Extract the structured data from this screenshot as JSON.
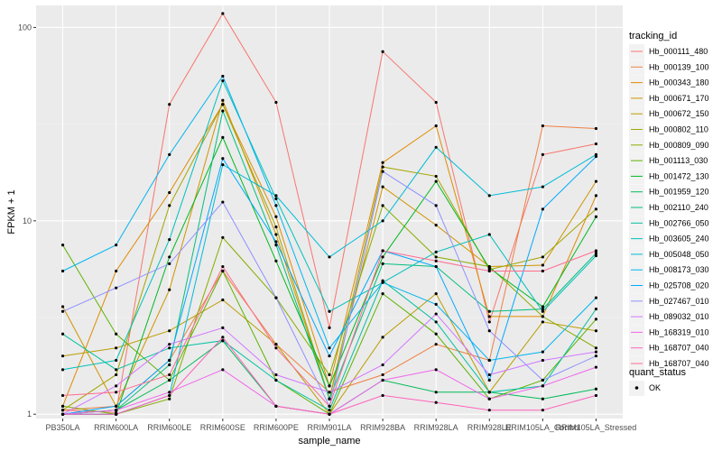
{
  "chart_data": {
    "type": "line",
    "xlabel": "sample_name",
    "ylabel": "FPKM + 1",
    "y_scale": "log10",
    "ylim": [
      0.95,
      130
    ],
    "y_ticks": [
      1,
      10,
      100
    ],
    "y_tick_labels": [
      "1",
      "10",
      "100"
    ],
    "grid": true,
    "legend_placement": "right",
    "panel_background": "#ebebeb",
    "categories": [
      "PB350LA",
      "RRIM600LA",
      "RRIM600LE",
      "RRIM600SE",
      "RRIM600PE",
      "RRIM901LA",
      "RRIM928BA",
      "RRIM928LA",
      "RRIM928LE",
      "RRIM105LA_Control",
      "RRIM105LA_Stressed"
    ],
    "color_legend": {
      "title": "tracking_id"
    },
    "shape_legend": {
      "title": "quant_status",
      "entries": [
        "OK"
      ]
    },
    "series": [
      {
        "name": "Hb_000111_480",
        "color": "#F8766D",
        "values": [
          1.05,
          1.02,
          40,
          118,
          41,
          2.8,
          75,
          41,
          3.0,
          22,
          25
        ]
      },
      {
        "name": "Hb_000139_100",
        "color": "#EE8043",
        "values": [
          1.05,
          1.1,
          1.9,
          5.5,
          2.3,
          1.3,
          1.6,
          2.3,
          1.9,
          31,
          30
        ]
      },
      {
        "name": "Hb_000343_180",
        "color": "#E08B00",
        "values": [
          1.1,
          5.5,
          14,
          40,
          10.5,
          1.4,
          20,
          31,
          3.2,
          3.2,
          13.5
        ]
      },
      {
        "name": "Hb_000671_170",
        "color": "#CF9400",
        "values": [
          3.6,
          1.1,
          4.4,
          42,
          8.5,
          1.2,
          15,
          9.5,
          5.8,
          5.9,
          16
        ]
      },
      {
        "name": "Hb_000672_150",
        "color": "#BB9D00",
        "values": [
          2.0,
          2.2,
          2.7,
          3.9,
          2.3,
          1.0,
          2.5,
          4.2,
          1.3,
          3.0,
          2.7
        ]
      },
      {
        "name": "Hb_000802_110",
        "color": "#A3A500",
        "values": [
          1.05,
          1.6,
          12,
          40,
          9.3,
          1.2,
          19,
          17,
          5.6,
          6.5,
          11.5
        ]
      },
      {
        "name": "Hb_000809_090",
        "color": "#85AD00",
        "values": [
          1.1,
          1.0,
          1.2,
          8.2,
          4.0,
          1.6,
          12,
          6.5,
          5.8,
          3.2,
          2.2
        ]
      },
      {
        "name": "Hb_001113_030",
        "color": "#5BB300",
        "values": [
          7.5,
          2.6,
          1.5,
          5.5,
          1.5,
          1.0,
          4.2,
          2.6,
          1.2,
          1.5,
          3.1
        ]
      },
      {
        "name": "Hb_001472_130",
        "color": "#00B81F",
        "values": [
          1.0,
          1.0,
          6.5,
          27,
          6.2,
          1.4,
          6.5,
          16,
          5.7,
          3.6,
          10.5
        ]
      },
      {
        "name": "Hb_001959_120",
        "color": "#00BC59",
        "values": [
          1.0,
          1.05,
          1.5,
          2.4,
          1.1,
          1.0,
          1.5,
          1.3,
          1.3,
          1.2,
          1.35
        ]
      },
      {
        "name": "Hb_002110_240",
        "color": "#00BF7D",
        "values": [
          1.0,
          1.05,
          1.8,
          37,
          7.5,
          1.2,
          6.0,
          5.8,
          3.4,
          3.5,
          6.8
        ]
      },
      {
        "name": "Hb_002766_050",
        "color": "#00C19F",
        "values": [
          2.6,
          1.7,
          2.2,
          2.4,
          1.5,
          1.05,
          4.9,
          3.0,
          1.3,
          1.4,
          3.5
        ]
      },
      {
        "name": "Hb_003605_240",
        "color": "#00C0BB",
        "values": [
          1.7,
          1.9,
          8.0,
          53,
          13,
          3.4,
          4.8,
          6.9,
          8.5,
          3.4,
          6.6
        ]
      },
      {
        "name": "Hb_005048_050",
        "color": "#00BCD6",
        "values": [
          1.0,
          1.0,
          1.25,
          19.5,
          13.5,
          6.5,
          10,
          24,
          13.5,
          15,
          22
        ]
      },
      {
        "name": "Hb_008173_030",
        "color": "#00B5EE",
        "values": [
          5.5,
          7.5,
          22,
          56,
          12,
          2.2,
          4.8,
          3.7,
          1.9,
          2.1,
          4.0
        ]
      },
      {
        "name": "Hb_025708_020",
        "color": "#00A9FF",
        "values": [
          1.0,
          1.1,
          1.9,
          21,
          7.8,
          2.0,
          7.0,
          5.8,
          1.5,
          11.5,
          21.5
        ]
      },
      {
        "name": "Hb_027467_010",
        "color": "#8F91FF",
        "values": [
          3.4,
          4.5,
          6.0,
          12.5,
          4.0,
          1.1,
          18,
          12,
          2.7,
          1.5,
          2.0
        ]
      },
      {
        "name": "Hb_089032_010",
        "color": "#D177FF",
        "values": [
          1.0,
          1.4,
          2.3,
          2.8,
          1.6,
          1.3,
          1.8,
          3.3,
          1.6,
          1.9,
          2.1
        ]
      },
      {
        "name": "Hb_168319_010",
        "color": "#F066EA",
        "values": [
          1.0,
          1.05,
          1.3,
          1.7,
          1.1,
          1.0,
          1.5,
          1.7,
          1.2,
          1.4,
          1.75
        ]
      },
      {
        "name": "Hb_168707_040",
        "color": "#FF62BC",
        "values": [
          1.0,
          1.0,
          1.25,
          2.5,
          1.1,
          1.0,
          1.25,
          1.15,
          1.05,
          1.05,
          1.25
        ]
      },
      {
        "name": "Hb_168707_040",
        "color": "#FF6C91",
        "values": [
          1.25,
          1.3,
          1.6,
          5.8,
          2.2,
          1.1,
          7.0,
          6.2,
          5.5,
          5.5,
          7.0
        ]
      }
    ]
  }
}
